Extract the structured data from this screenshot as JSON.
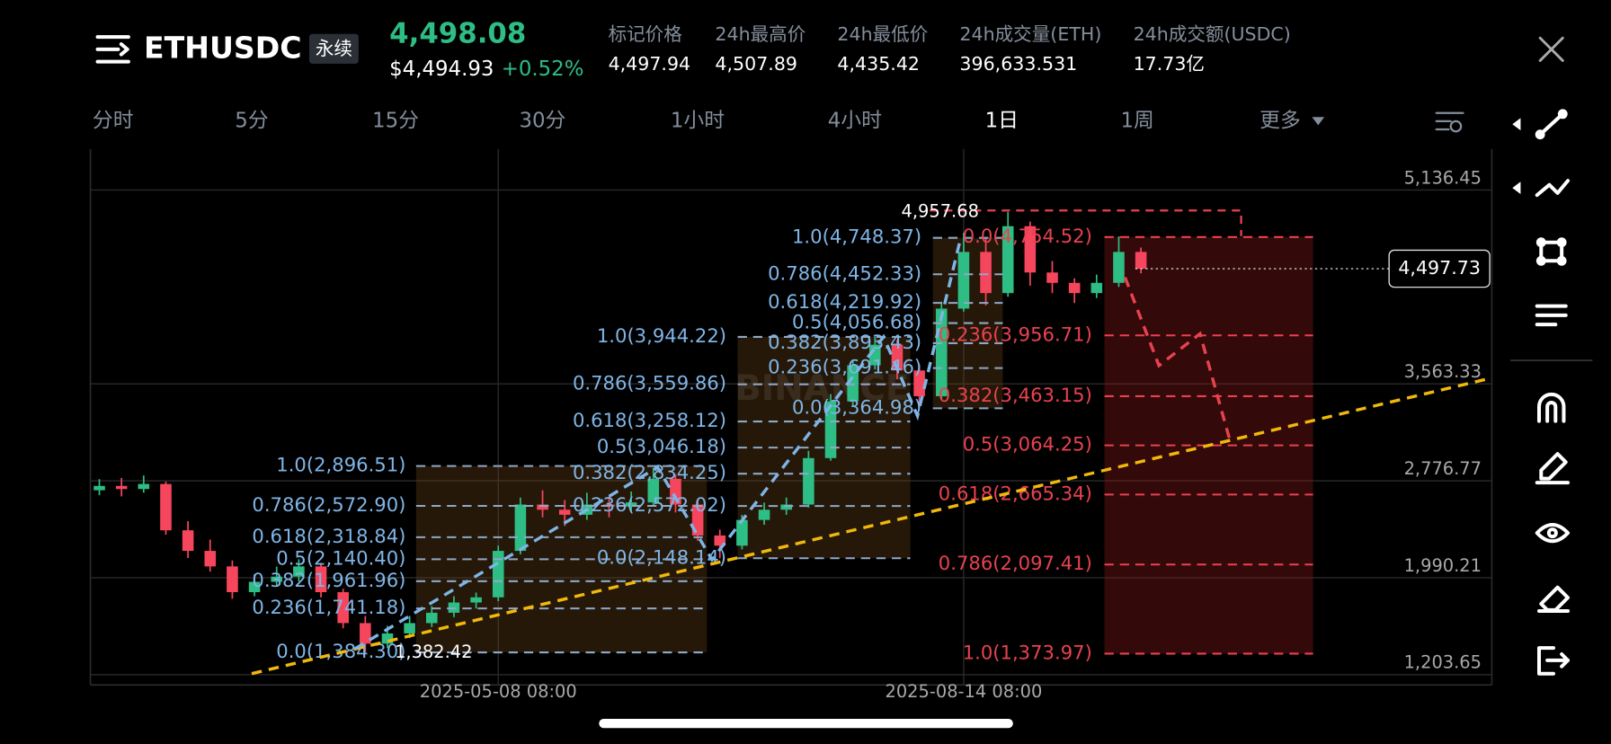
{
  "header": {
    "symbol": "ETHUSDC",
    "badge": "永续",
    "last_price": "4,498.08",
    "usd_price": "$4,494.93",
    "change": "+0.52%"
  },
  "stats": [
    {
      "label": "标记价格",
      "value": "4,497.94"
    },
    {
      "label": "24h最高价",
      "value": "4,507.89"
    },
    {
      "label": "24h最低价",
      "value": "4,435.42"
    },
    {
      "label": "24h成交量(ETH)",
      "value": "396,633.531"
    },
    {
      "label": "24h成交额(USDC)",
      "value": "17.73亿"
    }
  ],
  "tabs": [
    "分时",
    "5分",
    "15分",
    "30分",
    "1小时",
    "4小时",
    "1日",
    "1周",
    "更多"
  ],
  "chart_data": {
    "type": "candlestick",
    "up_color": "#2ebd85",
    "down_color": "#f6465d",
    "watermark": "BINANCE",
    "categories": [
      null,
      null,
      null,
      null,
      null,
      null,
      null,
      null,
      null,
      null,
      null,
      null,
      null,
      null,
      null,
      null,
      null,
      null,
      "2025-05-08 08:00",
      null,
      null,
      null,
      null,
      null,
      null,
      null,
      null,
      null,
      null,
      null,
      null,
      null,
      null,
      null,
      null,
      null,
      null,
      null,
      null,
      "2025-08-14 08:00",
      null,
      null,
      null,
      null,
      null,
      null,
      null,
      null
    ],
    "ohlc": [
      [
        2700,
        2790,
        2660,
        2735
      ],
      [
        2735,
        2800,
        2650,
        2710
      ],
      [
        2710,
        2820,
        2680,
        2751
      ],
      [
        2751,
        2770,
        2340,
        2375
      ],
      [
        2375,
        2450,
        2150,
        2208
      ],
      [
        2208,
        2300,
        2040,
        2082
      ],
      [
        2082,
        2130,
        1820,
        1873
      ],
      [
        1873,
        2020,
        1840,
        1957
      ],
      [
        1957,
        2080,
        1920,
        1999
      ],
      [
        1999,
        2140,
        1960,
        2082
      ],
      [
        2082,
        2110,
        1830,
        1873
      ],
      [
        1873,
        1900,
        1580,
        1622
      ],
      [
        1622,
        1680,
        1384,
        1455
      ],
      [
        1455,
        1600,
        1420,
        1538
      ],
      [
        1538,
        1680,
        1500,
        1622
      ],
      [
        1622,
        1760,
        1590,
        1706
      ],
      [
        1706,
        1840,
        1670,
        1789
      ],
      [
        1789,
        1870,
        1740,
        1831
      ],
      [
        1831,
        2250,
        1800,
        2208
      ],
      [
        2208,
        2640,
        2180,
        2584
      ],
      [
        2584,
        2700,
        2480,
        2542
      ],
      [
        2542,
        2620,
        2410,
        2501
      ],
      [
        2501,
        2680,
        2460,
        2584
      ],
      [
        2584,
        2650,
        2480,
        2567
      ],
      [
        2567,
        2690,
        2520,
        2601
      ],
      [
        2601,
        2880,
        2570,
        2793
      ],
      [
        2793,
        2830,
        2520,
        2584
      ],
      [
        2584,
        2620,
        2290,
        2333
      ],
      [
        2333,
        2380,
        2148,
        2250
      ],
      [
        2250,
        2500,
        2220,
        2459
      ],
      [
        2459,
        2600,
        2420,
        2542
      ],
      [
        2542,
        2640,
        2500,
        2584
      ],
      [
        2584,
        3020,
        2560,
        2961
      ],
      [
        2961,
        3480,
        2940,
        3421
      ],
      [
        3421,
        3760,
        3380,
        3714
      ],
      [
        3714,
        3944,
        3680,
        3881
      ],
      [
        3881,
        3920,
        3600,
        3672
      ],
      [
        3672,
        3720,
        3365,
        3463
      ],
      [
        3463,
        4230,
        3440,
        4174
      ],
      [
        4174,
        4790,
        4150,
        4634
      ],
      [
        4634,
        4750,
        4200,
        4300
      ],
      [
        4300,
        4958,
        4270,
        4843
      ],
      [
        4843,
        4880,
        4360,
        4467
      ],
      [
        4467,
        4560,
        4300,
        4383
      ],
      [
        4383,
        4420,
        4220,
        4300
      ],
      [
        4300,
        4450,
        4260,
        4383
      ],
      [
        4383,
        4760,
        4350,
        4634
      ],
      [
        4634,
        4670,
        4460,
        4498
      ]
    ],
    "ylim": [
      1120,
      5470
    ],
    "yticks": [
      {
        "value": 1203.65,
        "label": "1,203.65"
      },
      {
        "value": 1990.21,
        "label": "1,990.21"
      },
      {
        "value": 2776.77,
        "label": "2,776.77"
      },
      {
        "value": 3563.33,
        "label": "3,563.33"
      },
      {
        "value": 5136.45,
        "label": "5,136.45"
      }
    ],
    "grid": true,
    "current_price": {
      "value": 4497.73,
      "label": "4,497.73"
    },
    "annotations": [
      {
        "value": 4957.68,
        "label": "4,957.68"
      },
      {
        "value": 1382.42,
        "label": "1,382.42"
      }
    ],
    "fib_sets": [
      {
        "color": "#7fb5e6",
        "levels": [
          {
            "value": 2896.51,
            "label": "1.0(2,896.51)"
          },
          {
            "value": 2572.9,
            "label": "0.786(2,572.90)"
          },
          {
            "value": 2318.84,
            "label": "0.618(2,318.84)"
          },
          {
            "value": 2140.4,
            "label": "0.5(2,140.40)"
          },
          {
            "value": 1961.96,
            "label": "0.382(1,961.96)"
          },
          {
            "value": 1741.18,
            "label": "0.236(1,741.18)"
          },
          {
            "value": 1384.3,
            "label": "0.0(1,384.30)"
          }
        ]
      },
      {
        "color": "#7fb5e6",
        "levels": [
          {
            "value": 3944.22,
            "label": "1.0(3,944.22)"
          },
          {
            "value": 3559.86,
            "label": "0.786(3,559.86)"
          },
          {
            "value": 3258.12,
            "label": "0.618(3,258.12)"
          },
          {
            "value": 3046.18,
            "label": "0.5(3,046.18)"
          },
          {
            "value": 2834.25,
            "label": "0.382(2,834.25)"
          },
          {
            "value": 2572.02,
            "label": "0.236(2,572.02)"
          },
          {
            "value": 2148.14,
            "label": "0.0(2,148.14)"
          }
        ]
      },
      {
        "color": "#7fb5e6",
        "levels": [
          {
            "value": 4748.37,
            "label": "1.0(4,748.37)"
          },
          {
            "value": 4452.33,
            "label": "0.786(4,452.33)"
          },
          {
            "value": 4219.92,
            "label": "0.618(4,219.92)"
          },
          {
            "value": 4056.68,
            "label": "0.5(4,056.68)"
          },
          {
            "value": 3893.43,
            "label": "0.382(3,893.43)"
          },
          {
            "value": 3691.46,
            "label": "0.236(3,691.46)"
          },
          {
            "value": 3364.98,
            "label": "0.0(3,364.98)"
          }
        ]
      },
      {
        "color": "#e8424f",
        "levels": [
          {
            "value": 4754.52,
            "label": "0.0(4,754.52)"
          },
          {
            "value": 3956.71,
            "label": "0.236(3,956.71)"
          },
          {
            "value": 3463.15,
            "label": "0.382(3,463.15)"
          },
          {
            "value": 3064.25,
            "label": "0.5(3,064.25)"
          },
          {
            "value": 2665.34,
            "label": "0.618(2,665.34)"
          },
          {
            "value": 2097.41,
            "label": "0.786(2,097.41)"
          },
          {
            "value": 1373.97,
            "label": "1.0(1,373.97)"
          }
        ]
      }
    ]
  }
}
